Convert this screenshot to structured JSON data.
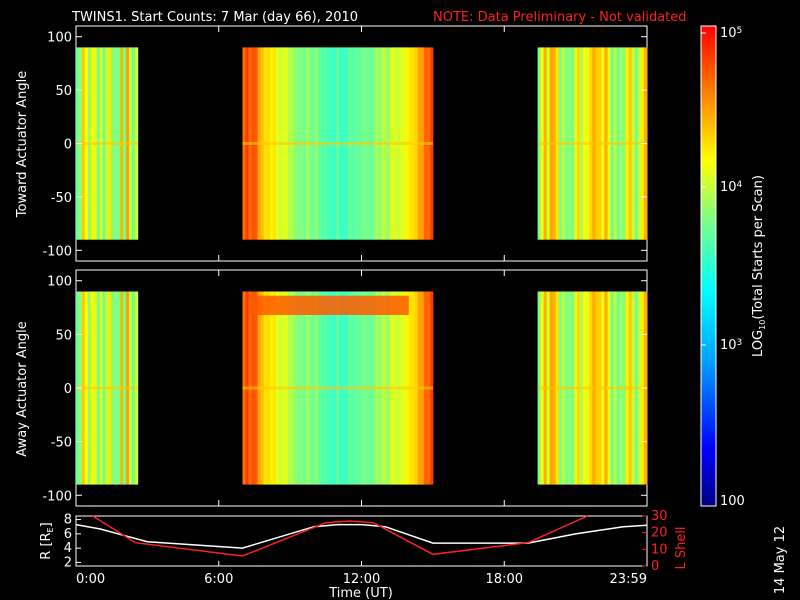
{
  "header": {
    "title": "TWINS1. Start Counts:  7 Mar (day  66), 2010",
    "note": "NOTE: Data Preliminary - Not validated",
    "note_color": "#ff2020"
  },
  "date_stamp": "14 May 12",
  "chart_data": [
    {
      "type": "heatmap",
      "ylabel": "Toward Actuator Angle",
      "ylim": [
        -110,
        110
      ],
      "yticks": [
        "100",
        "50",
        "0",
        "-50",
        "-100"
      ],
      "yticks_values": [
        100,
        50,
        0,
        -50,
        -100
      ],
      "data_angle_range": [
        -90,
        90
      ],
      "xlim_hours": [
        0,
        24
      ],
      "data_blocks_hours": [
        [
          0.0,
          2.6
        ],
        [
          7.0,
          15.0
        ],
        [
          19.4,
          24.0
        ]
      ],
      "colormap": "rainbow",
      "log_scale": true
    },
    {
      "type": "heatmap",
      "ylabel": "Away Actuator Angle",
      "ylim": [
        -110,
        110
      ],
      "yticks": [
        "100",
        "50",
        "0",
        "-50",
        "-100"
      ],
      "yticks_values": [
        100,
        50,
        0,
        -50,
        -100
      ],
      "data_angle_range": [
        -90,
        90
      ],
      "xlim_hours": [
        0,
        24
      ],
      "data_blocks_hours": [
        [
          0.0,
          2.6
        ],
        [
          7.0,
          15.0
        ],
        [
          19.4,
          24.0
        ]
      ],
      "colormap": "rainbow",
      "log_scale": true
    },
    {
      "type": "line",
      "xlabel": "Time (UT)",
      "xticks": [
        "0:00",
        "6:00",
        "12:00",
        "18:00",
        "23:59"
      ],
      "xticks_hours": [
        0,
        6,
        12,
        18,
        24
      ],
      "ylabel_left": "R [R",
      "ylabel_left_sub": "E",
      "ylabel_left_end": "]",
      "ylim_left": [
        1.5,
        8.5
      ],
      "yticks_left": [
        "8",
        "6",
        "4",
        "2"
      ],
      "ylabel_right": "L Shell",
      "ylim_right": [
        0,
        30
      ],
      "yticks_right": [
        "30",
        "20",
        "10",
        "0"
      ],
      "series": [
        {
          "color": "#ffffff",
          "x": [
            0,
            1,
            3,
            7,
            10,
            11,
            12,
            13,
            15,
            19,
            21,
            23,
            24
          ],
          "values": [
            7.3,
            6.7,
            4.9,
            4.0,
            7.0,
            7.3,
            7.3,
            7.0,
            4.7,
            4.7,
            6.0,
            7.0,
            7.2
          ]
        }
      ],
      "series_right": [
        {
          "color": "#ff2020",
          "x": [
            0.7,
            2.5,
            7.0,
            10.5,
            11.5,
            12.5,
            15.0,
            19.0,
            21.5
          ],
          "values": [
            30,
            14,
            6,
            26,
            27,
            26,
            7,
            14,
            30
          ]
        }
      ]
    }
  ],
  "colorbar": {
    "label": "LOG",
    "label_sub": "10",
    "label_end": "(Total Starts per Scan)",
    "ticks": [
      "10",
      "10",
      "10"
    ],
    "ticks_exp": [
      "5",
      "4",
      "3"
    ],
    "bottom_tick": "100"
  }
}
